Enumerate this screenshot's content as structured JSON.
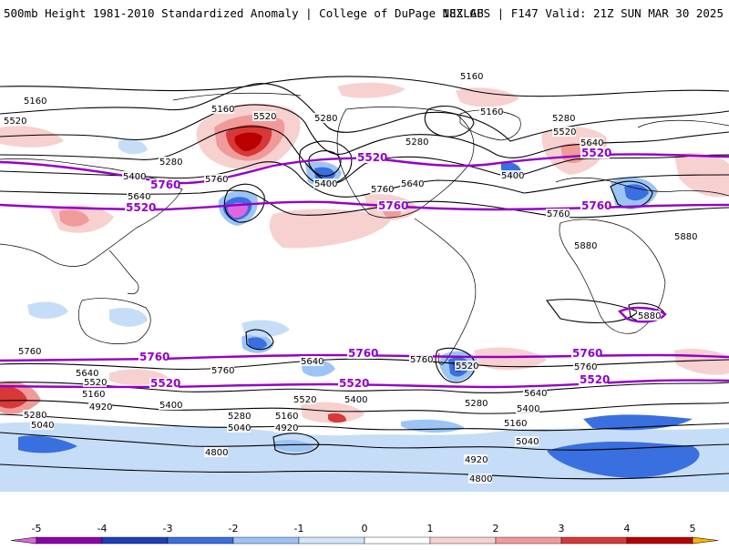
{
  "header": {
    "left_title": "500mb Height 1981-2010 Standardized Anomaly | College of DuPage NEXLAB",
    "right_title": "18Z GFS | F147 Valid: 21Z SUN MAR 30 2025"
  },
  "colors": {
    "ocean": "#ffffff",
    "contour": "#000000",
    "purple_contour": "#9400c8",
    "land_outline": "#000000"
  },
  "legend": {
    "ticks": [
      "-5",
      "-4",
      "-3",
      "-2",
      "-1",
      "0",
      "1",
      "2",
      "3",
      "4",
      "5"
    ],
    "colors": [
      "#e066e0",
      "#8b00b0",
      "#1c3fb8",
      "#3a6fe0",
      "#9cc4f5",
      "#d2e6fb",
      "#ffffff",
      "#f7d0d0",
      "#f09a9a",
      "#d83838",
      "#b80000",
      "#e89000",
      "#ffb000"
    ]
  },
  "contour_labels": [
    {
      "text": "5160"
    },
    {
      "text": "5520"
    },
    {
      "text": "5400"
    },
    {
      "text": "5640"
    },
    {
      "text": "5280"
    },
    {
      "text": "5160"
    },
    {
      "text": "5520"
    },
    {
      "text": "5280"
    },
    {
      "text": "5400"
    },
    {
      "text": "5760"
    },
    {
      "text": "5640"
    },
    {
      "text": "5760"
    },
    {
      "text": "5160"
    },
    {
      "text": "5280"
    },
    {
      "text": "5160"
    },
    {
      "text": "5280"
    },
    {
      "text": "5520"
    },
    {
      "text": "5640"
    },
    {
      "text": "5400"
    },
    {
      "text": "5760"
    },
    {
      "text": "5880"
    },
    {
      "text": "5880"
    },
    {
      "text": "5880"
    },
    {
      "text": "5760"
    },
    {
      "text": "5640"
    },
    {
      "text": "5520"
    },
    {
      "text": "5160"
    },
    {
      "text": "4920"
    },
    {
      "text": "5280"
    },
    {
      "text": "5040"
    },
    {
      "text": "5760"
    },
    {
      "text": "5400"
    },
    {
      "text": "5280"
    },
    {
      "text": "5040"
    },
    {
      "text": "5160"
    },
    {
      "text": "4920"
    },
    {
      "text": "5640"
    },
    {
      "text": "5520"
    },
    {
      "text": "5400"
    },
    {
      "text": "5520"
    },
    {
      "text": "5280"
    },
    {
      "text": "5760"
    },
    {
      "text": "5760"
    },
    {
      "text": "5640"
    },
    {
      "text": "5400"
    },
    {
      "text": "5160"
    },
    {
      "text": "5040"
    },
    {
      "text": "4920"
    },
    {
      "text": "4800"
    },
    {
      "text": "4800"
    }
  ],
  "purple_labels": [
    {
      "text": "5520"
    },
    {
      "text": "5760"
    },
    {
      "text": "5520"
    },
    {
      "text": "5760"
    },
    {
      "text": "5520"
    },
    {
      "text": "5760"
    },
    {
      "text": "5760"
    },
    {
      "text": "5760"
    },
    {
      "text": "5520"
    },
    {
      "text": "5760"
    },
    {
      "text": "5520"
    },
    {
      "text": "5520"
    }
  ]
}
